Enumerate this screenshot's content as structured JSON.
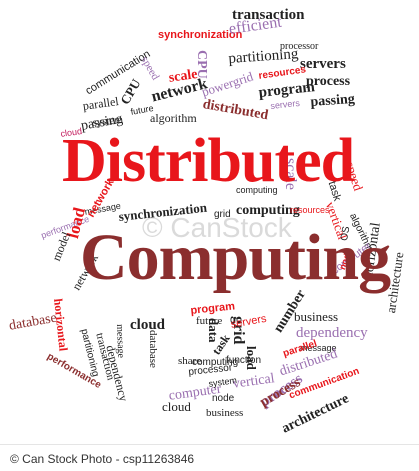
{
  "headline": {
    "line1": "Distributed",
    "line2": "Computing"
  },
  "watermark": "© CanStock",
  "footer": {
    "left": "© Can Stock Photo - csp11263846",
    "right": ""
  },
  "colors": {
    "red": "#e8161b",
    "maroon": "#8b2e2e",
    "dark": "#222222",
    "lavender": "#9a6fb0",
    "pink": "#c2185b"
  },
  "words": [
    {
      "text": "transaction",
      "color": "dark"
    },
    {
      "text": "synchronization",
      "color": "red"
    },
    {
      "text": "efficient",
      "color": "lavender"
    },
    {
      "text": "processor",
      "color": "dark"
    },
    {
      "text": "communication",
      "color": "dark"
    },
    {
      "text": "partitioning",
      "color": "dark"
    },
    {
      "text": "servers",
      "color": "dark"
    },
    {
      "text": "speed",
      "color": "lavender"
    },
    {
      "text": "scale",
      "color": "red"
    },
    {
      "text": "CPU",
      "color": "lavender"
    },
    {
      "text": "powergrid",
      "color": "lavender"
    },
    {
      "text": "resources",
      "color": "red"
    },
    {
      "text": "process",
      "color": "dark"
    },
    {
      "text": "program",
      "color": "dark"
    },
    {
      "text": "CPU",
      "color": "dark"
    },
    {
      "text": "network",
      "color": "dark"
    },
    {
      "text": "parallel",
      "color": "dark"
    },
    {
      "text": "future",
      "color": "dark"
    },
    {
      "text": "distributed",
      "color": "maroon"
    },
    {
      "text": "passing",
      "color": "dark"
    },
    {
      "text": "servers",
      "color": "lavender"
    },
    {
      "text": "system",
      "color": "dark"
    },
    {
      "text": "algorithm",
      "color": "dark"
    },
    {
      "text": "cloud",
      "color": "pink"
    },
    {
      "text": "passing",
      "color": "dark"
    },
    {
      "text": "speed",
      "color": "red"
    },
    {
      "text": "computing",
      "color": "dark"
    },
    {
      "text": "message",
      "color": "dark"
    },
    {
      "text": "scale",
      "color": "lavender"
    },
    {
      "text": "task",
      "color": "dark"
    },
    {
      "text": "performance",
      "color": "lavender"
    },
    {
      "text": "network",
      "color": "red"
    },
    {
      "text": "synchronization",
      "color": "dark"
    },
    {
      "text": "grid",
      "color": "dark"
    },
    {
      "text": "computing",
      "color": "dark"
    },
    {
      "text": "resources",
      "color": "red"
    },
    {
      "text": "vertical",
      "color": "red"
    },
    {
      "text": "load",
      "color": "red"
    },
    {
      "text": "model",
      "color": "dark"
    },
    {
      "text": "network",
      "color": "dark"
    },
    {
      "text": "OS",
      "color": "dark"
    },
    {
      "text": "algorithm",
      "color": "dark"
    },
    {
      "text": "horizontal",
      "color": "dark"
    },
    {
      "text": "architecture",
      "color": "dark"
    },
    {
      "text": "computer",
      "color": "lavender"
    },
    {
      "text": "node",
      "color": "red"
    },
    {
      "text": "database",
      "color": "maroon"
    },
    {
      "text": "horizontal",
      "color": "red"
    },
    {
      "text": "business",
      "color": "dark"
    },
    {
      "text": "dependency",
      "color": "lavender"
    },
    {
      "text": "message",
      "color": "dark"
    },
    {
      "text": "grid",
      "color": "dark"
    },
    {
      "text": "future",
      "color": "dark"
    },
    {
      "text": "program",
      "color": "red"
    },
    {
      "text": "data",
      "color": "dark"
    },
    {
      "text": "servers",
      "color": "red"
    },
    {
      "text": "number",
      "color": "dark"
    },
    {
      "text": "cloud",
      "color": "dark"
    },
    {
      "text": "database",
      "color": "dark"
    },
    {
      "text": "message",
      "color": "dark"
    },
    {
      "text": "process",
      "color": "lavender"
    },
    {
      "text": "computing",
      "color": "dark"
    },
    {
      "text": "partitioning",
      "color": "dark"
    },
    {
      "text": "performance",
      "color": "maroon"
    },
    {
      "text": "transaction",
      "color": "dark"
    },
    {
      "text": "dependency",
      "color": "dark"
    },
    {
      "text": "share",
      "color": "dark"
    },
    {
      "text": "processor",
      "color": "dark"
    },
    {
      "text": "task",
      "color": "dark"
    },
    {
      "text": "function",
      "color": "dark"
    },
    {
      "text": "load",
      "color": "dark"
    },
    {
      "text": "parallel",
      "color": "red"
    },
    {
      "text": "distributed",
      "color": "lavender"
    },
    {
      "text": "vertical",
      "color": "lavender"
    },
    {
      "text": "node",
      "color": "dark"
    },
    {
      "text": "computer",
      "color": "lavender"
    },
    {
      "text": "system",
      "color": "dark"
    },
    {
      "text": "cloud",
      "color": "dark"
    },
    {
      "text": "business",
      "color": "dark"
    },
    {
      "text": "process",
      "color": "maroon"
    },
    {
      "text": "communication",
      "color": "red"
    },
    {
      "text": "architecture",
      "color": "dark"
    }
  ]
}
